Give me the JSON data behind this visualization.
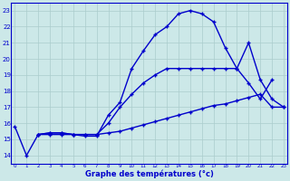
{
  "xlabel": "Graphe des températures (°c)",
  "bg_color": "#cce8e8",
  "grid_color": "#aacccc",
  "line_color": "#0000cc",
  "line1_x": [
    0,
    1,
    2,
    3,
    4,
    5,
    6,
    7,
    8,
    9,
    10,
    11,
    12,
    13,
    14,
    15,
    16,
    17,
    18,
    19,
    20,
    21,
    22
  ],
  "line1_y": [
    15.8,
    14.0,
    15.3,
    15.3,
    15.3,
    15.3,
    15.2,
    15.2,
    16.5,
    17.3,
    19.4,
    20.5,
    21.5,
    22.0,
    22.8,
    23.0,
    22.8,
    22.3,
    20.7,
    19.4,
    18.5,
    17.5,
    18.7
  ],
  "line2_x": [
    2,
    3,
    4,
    5,
    6,
    7,
    8,
    9,
    10,
    11,
    12,
    13,
    14,
    15,
    16,
    17,
    18,
    19,
    20,
    21,
    22,
    23
  ],
  "line2_y": [
    15.3,
    15.4,
    15.4,
    15.3,
    15.3,
    15.3,
    15.4,
    15.5,
    15.7,
    15.9,
    16.1,
    16.3,
    16.5,
    16.7,
    16.9,
    17.1,
    17.2,
    17.4,
    17.6,
    17.8,
    17.0,
    17.0
  ],
  "line3_x": [
    2,
    3,
    4,
    5,
    6,
    7,
    8,
    9,
    10,
    11,
    12,
    13,
    14,
    15,
    16,
    17,
    18,
    19,
    20,
    21,
    22,
    23
  ],
  "line3_y": [
    15.3,
    15.4,
    15.4,
    15.3,
    15.3,
    15.3,
    16.0,
    17.0,
    17.8,
    18.5,
    19.0,
    19.4,
    19.4,
    19.4,
    19.4,
    19.4,
    19.4,
    19.4,
    21.0,
    18.7,
    17.5,
    17.0
  ],
  "ylim": [
    13.5,
    23.5
  ],
  "xlim": [
    -0.3,
    23.3
  ],
  "yticks": [
    14,
    15,
    16,
    17,
    18,
    19,
    20,
    21,
    22,
    23
  ],
  "xticks": [
    0,
    1,
    2,
    3,
    4,
    5,
    6,
    7,
    8,
    9,
    10,
    11,
    12,
    13,
    14,
    15,
    16,
    17,
    18,
    19,
    20,
    21,
    22,
    23
  ]
}
